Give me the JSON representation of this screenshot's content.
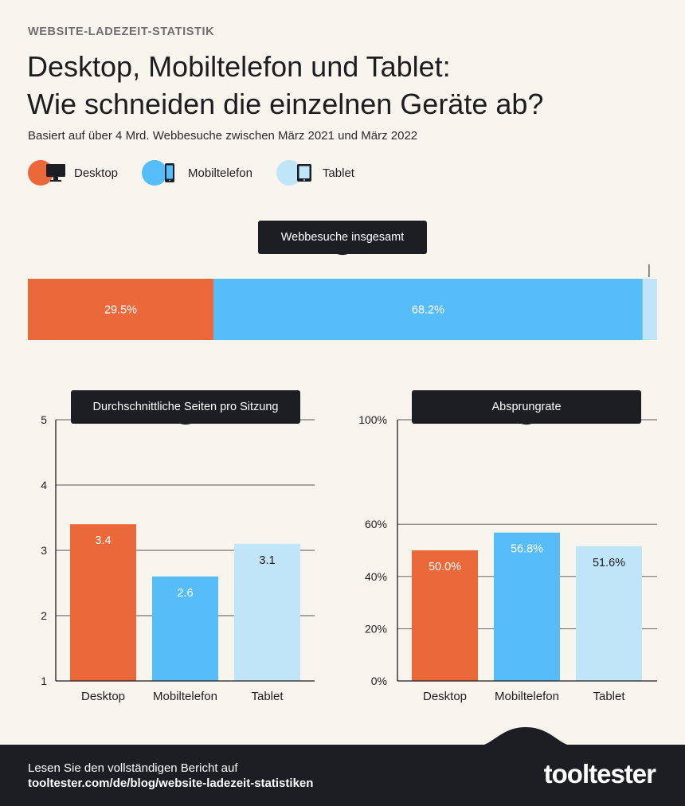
{
  "header": {
    "eyebrow": "WEBSITE-LADEZEIT-STATISTIK",
    "title_line1": "Desktop, Mobiltelefon und Tablet:",
    "title_line2": "Wie schneiden die einzelnen Geräte ab?",
    "subtitle": "Basiert auf über 4 Mrd. Webbesuche zwischen März 2021 und März 2022"
  },
  "legend": [
    {
      "label": "Desktop",
      "color": "#eb683b",
      "icon": "desktop-icon"
    },
    {
      "label": "Mobiltelefon",
      "color": "#57bdf8",
      "icon": "mobile-phone-icon"
    },
    {
      "label": "Tablet",
      "color": "#c0e4f8",
      "icon": "tablet-icon"
    }
  ],
  "colors": {
    "desktop": "#eb683b",
    "mobile": "#57bdf8",
    "tablet": "#c0e4f8",
    "dark": "#1d1d24"
  },
  "chart_data": [
    {
      "type": "bar",
      "orientation": "horizontal-stacked",
      "title": "Webbesuche insgesamt",
      "categories": [
        "Desktop",
        "Mobiltelefon",
        "Tablet"
      ],
      "values": [
        29.5,
        68.2,
        2.3
      ],
      "labels": [
        "29.5%",
        "68.2%",
        "2.3%"
      ]
    },
    {
      "type": "bar",
      "title": "Durchschnittliche Seiten pro Sitzung",
      "categories": [
        "Desktop",
        "Mobiltelefon",
        "Tablet"
      ],
      "values": [
        3.4,
        2.6,
        3.1
      ],
      "labels": [
        "3.4",
        "2.6",
        "3.1"
      ],
      "ylim": [
        1,
        5
      ],
      "yticks": [
        "1",
        "2",
        "3",
        "4",
        "5"
      ],
      "grid": true
    },
    {
      "type": "bar",
      "title": "Absprungrate",
      "categories": [
        "Desktop",
        "Mobiltelefon",
        "Tablet"
      ],
      "values": [
        50.0,
        56.8,
        51.6
      ],
      "labels": [
        "50.0%",
        "56.8%",
        "51.6%"
      ],
      "ylim": [
        0,
        100
      ],
      "yticks": [
        "0%",
        "20%",
        "40%",
        "60%",
        "100%"
      ],
      "grid": true
    }
  ],
  "footer": {
    "text1": "Lesen Sie den vollständigen Bericht auf",
    "text2": "tooltester.com/de/blog/website-ladezeit-statistiken",
    "logo": "tooltester"
  }
}
